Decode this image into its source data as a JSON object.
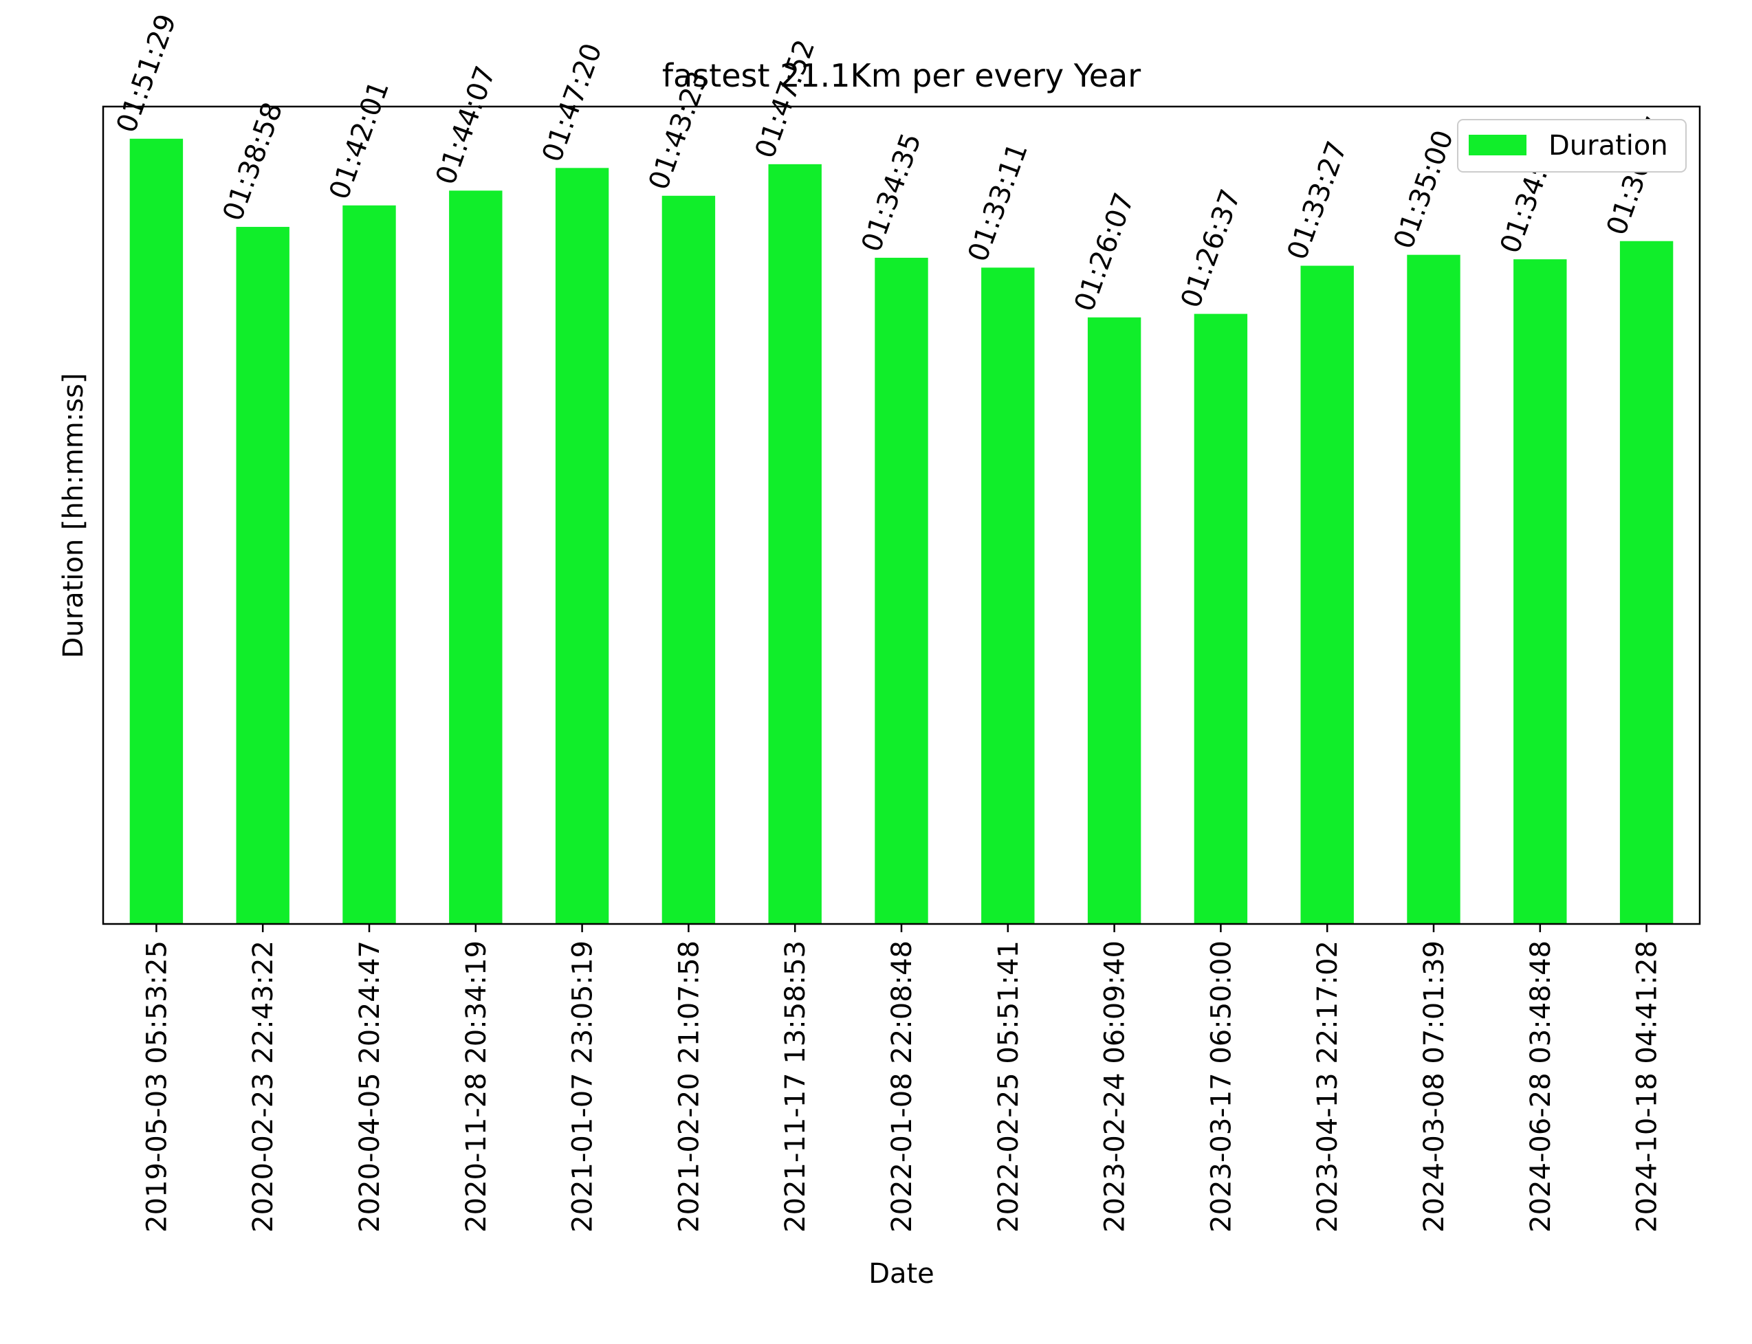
{
  "chart_data": {
    "type": "bar",
    "title": "fastest 21.1Km per every Year",
    "xlabel": "Date",
    "ylabel": "Duration [hh:mm:ss]",
    "legend": {
      "position": "top-right",
      "entries": [
        "Duration"
      ]
    },
    "bar_color": "#10ee2a",
    "y_ticks_shown": false,
    "grid": false,
    "ylim": [
      "00:00:00",
      "01:56:03"
    ],
    "categories": [
      "2019-05-03 05:53:25",
      "2020-02-23 22:43:22",
      "2020-04-05 20:24:47",
      "2020-11-28 20:34:19",
      "2021-01-07 23:05:19",
      "2021-02-20 21:07:58",
      "2021-11-17 13:58:53",
      "2022-01-08 22:08:48",
      "2022-02-25 05:51:41",
      "2023-02-24 06:09:40",
      "2023-03-17 06:50:00",
      "2023-04-13 22:17:02",
      "2024-03-08 07:01:39",
      "2024-06-28 03:48:48",
      "2024-10-18 04:41:28"
    ],
    "series": [
      {
        "name": "Duration",
        "values": [
          "01:51:29",
          "01:38:58",
          "01:42:01",
          "01:44:07",
          "01:47:20",
          "01:43:23",
          "01:47:52",
          "01:34:35",
          "01:33:11",
          "01:26:07",
          "01:26:37",
          "01:33:27",
          "01:35:00",
          "01:34:22",
          "01:36:57"
        ]
      }
    ]
  }
}
